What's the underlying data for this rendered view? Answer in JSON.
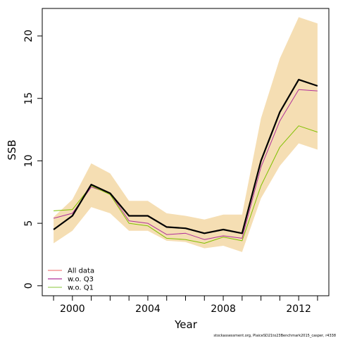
{
  "chart_data": {
    "type": "line",
    "xlabel": "Year",
    "ylabel": "SSB",
    "xlim": [
      1998.4,
      2013.6
    ],
    "ylim": [
      -0.8,
      22.2
    ],
    "x_ticks": [
      1999,
      2000,
      2001,
      2002,
      2003,
      2004,
      2005,
      2006,
      2007,
      2008,
      2009,
      2010,
      2011,
      2012,
      2013
    ],
    "x_tick_labels": [
      {
        "x": 2000,
        "label": "2000"
      },
      {
        "x": 2004,
        "label": "2004"
      },
      {
        "x": 2008,
        "label": "2008"
      },
      {
        "x": 2012,
        "label": "2012"
      }
    ],
    "y_ticks": [
      {
        "y": 0,
        "label": "0"
      },
      {
        "y": 5,
        "label": "5"
      },
      {
        "y": 10,
        "label": "10"
      },
      {
        "y": 15,
        "label": "15"
      },
      {
        "y": 20,
        "label": "20"
      }
    ],
    "x": [
      1999,
      2000,
      2001,
      2002,
      2003,
      2004,
      2005,
      2006,
      2007,
      2008,
      2009,
      2010,
      2011,
      2012,
      2013
    ],
    "band": {
      "color": "#f5deb3",
      "lower": [
        3.4,
        4.4,
        6.3,
        5.8,
        4.4,
        4.4,
        3.6,
        3.5,
        3.0,
        3.2,
        2.7,
        7.0,
        9.6,
        11.4,
        10.9
      ],
      "upper": [
        5.5,
        6.9,
        9.8,
        9.0,
        6.8,
        6.8,
        5.8,
        5.6,
        5.3,
        5.7,
        5.7,
        13.4,
        18.2,
        21.5,
        21.0
      ]
    },
    "series": [
      {
        "name": "All data",
        "color": "#000000",
        "width": 2.2,
        "show_in_legend": false,
        "values": [
          4.5,
          5.6,
          8.1,
          7.4,
          5.6,
          5.6,
          4.7,
          4.6,
          4.2,
          4.5,
          4.2,
          10.0,
          13.9,
          16.5,
          16.0
        ]
      },
      {
        "name": "w.o. Q3",
        "color": "#b0309a",
        "width": 1.0,
        "show_in_legend": true,
        "values": [
          5.4,
          5.8,
          7.9,
          7.4,
          5.2,
          5.0,
          4.1,
          4.2,
          3.7,
          4.0,
          3.8,
          9.5,
          13.2,
          15.7,
          15.6
        ]
      },
      {
        "name": "w.o. Q1",
        "color": "#80c000",
        "width": 1.0,
        "show_in_legend": true,
        "values": [
          6.0,
          6.1,
          8.0,
          7.3,
          5.0,
          4.8,
          3.8,
          3.7,
          3.4,
          3.9,
          3.6,
          8.0,
          11.1,
          12.8,
          12.3
        ]
      }
    ],
    "legend": {
      "position": "bottom-left",
      "entries": [
        {
          "label": "All data",
          "color": "#f08080"
        },
        {
          "label": "w.o. Q3",
          "color": "#b0309a"
        },
        {
          "label": "w.o. Q1",
          "color": "#a0d060"
        }
      ]
    },
    "grid": false
  },
  "footer": "stockassessment.org, PlaiceSD21to23Benchmark2015_casper, r4338"
}
